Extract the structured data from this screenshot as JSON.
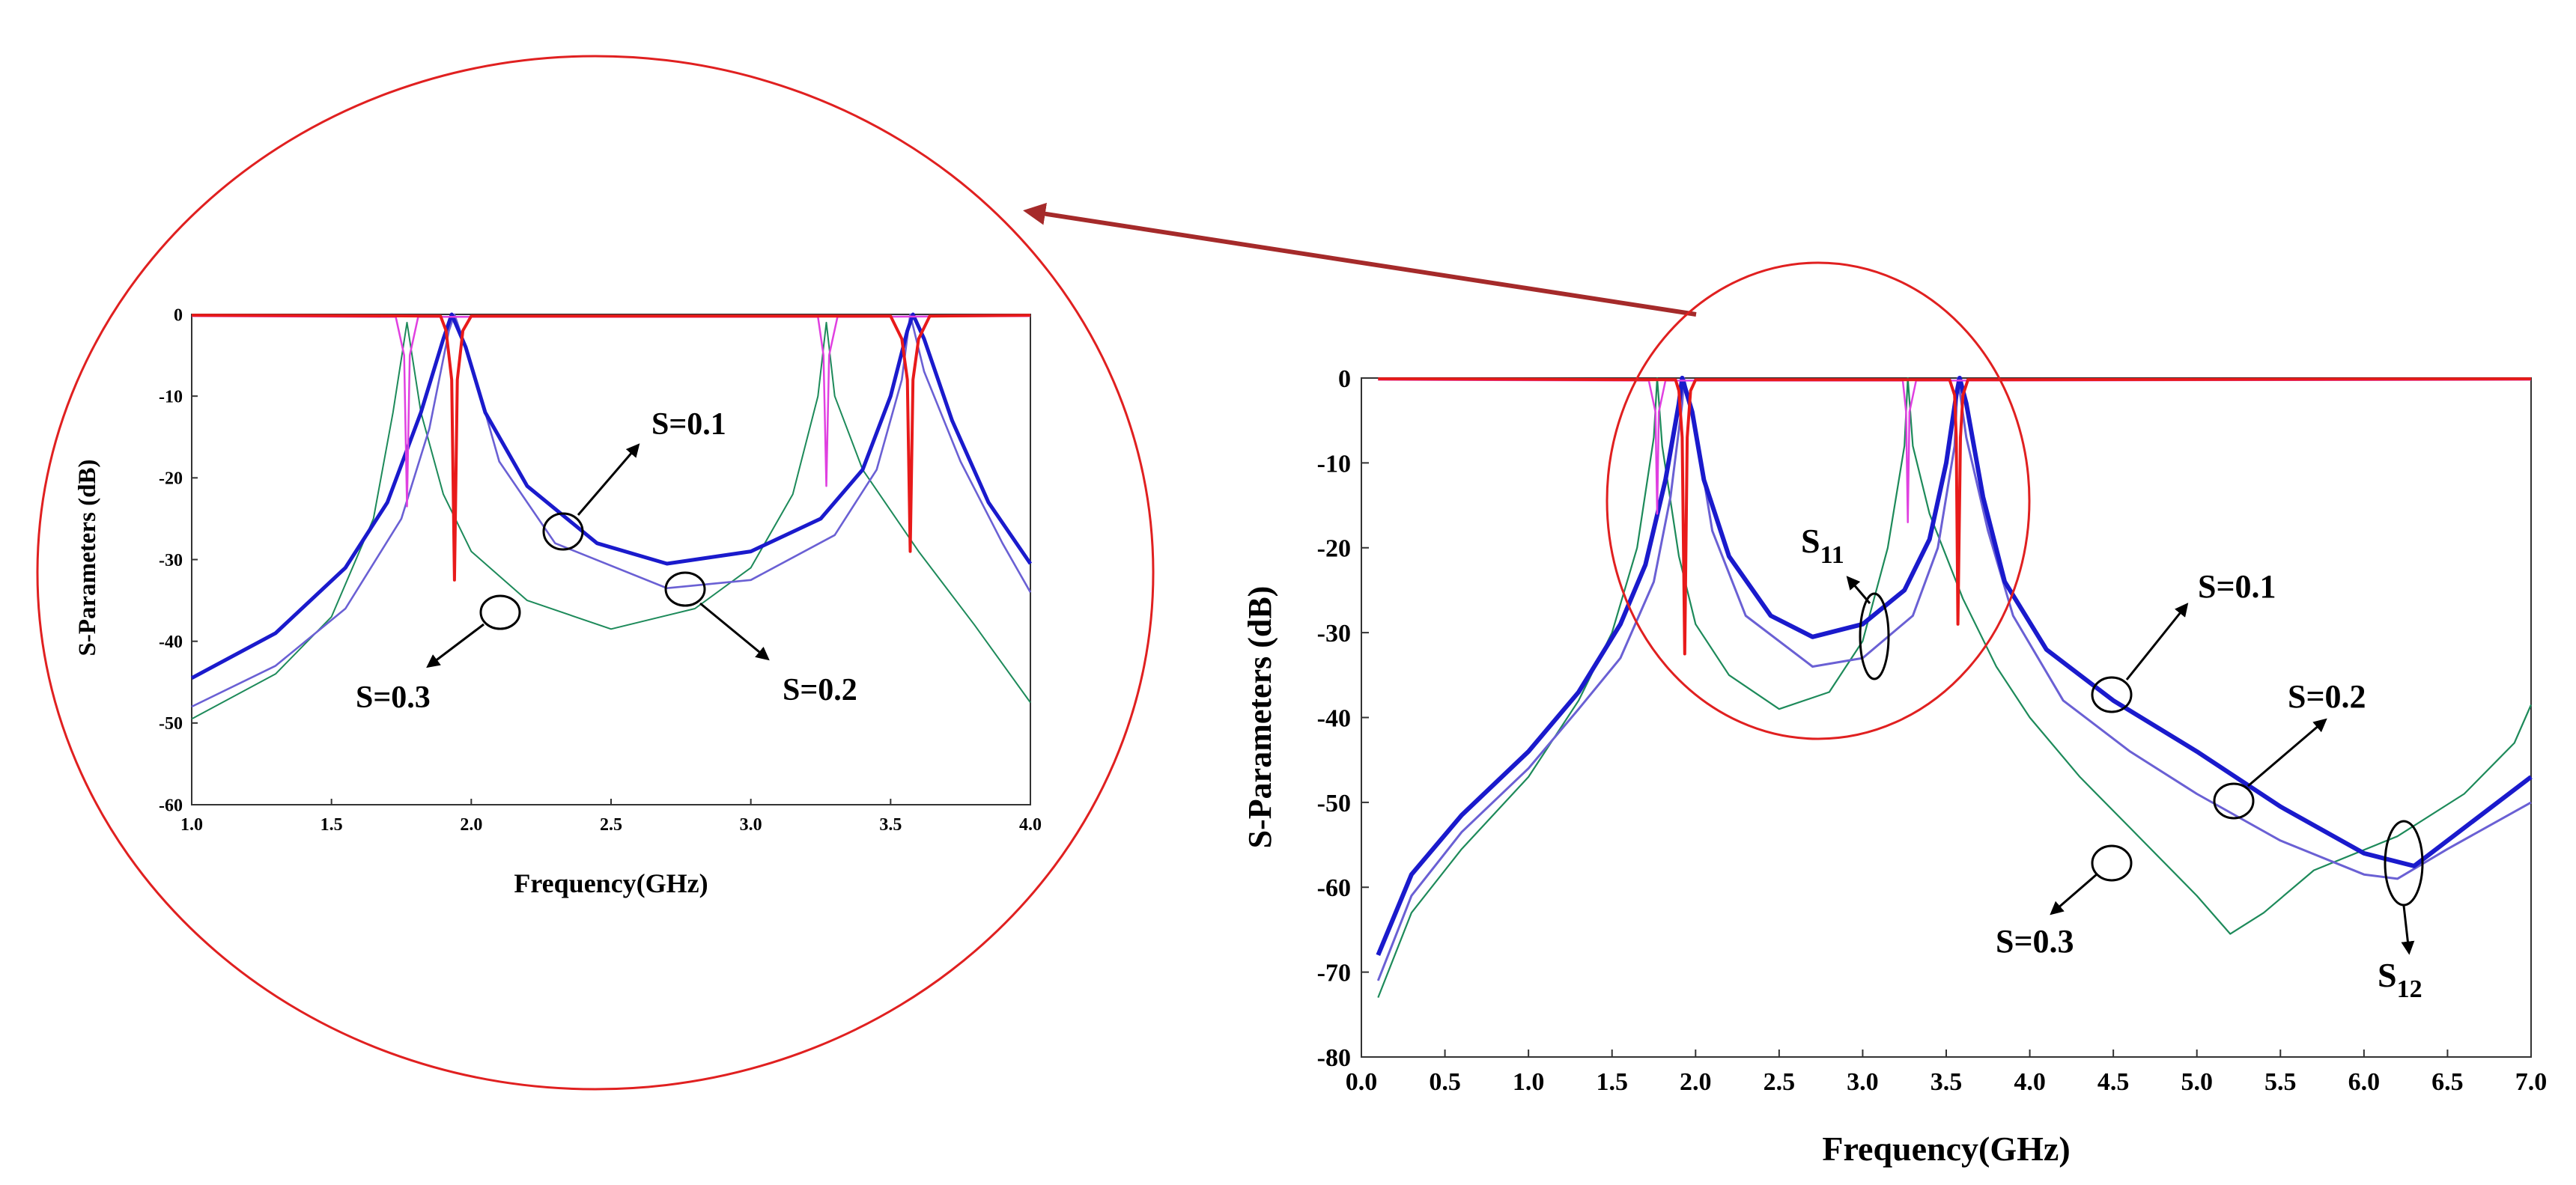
{
  "chart_data": [
    {
      "id": "main",
      "type": "line",
      "xlabel": "Frequency(GHz)",
      "ylabel": "S-Parameters (dB)",
      "xlim": [
        0.0,
        7.0
      ],
      "ylim": [
        -80,
        0
      ],
      "xticks": [
        "0.0",
        "0.5",
        "1.0",
        "1.5",
        "2.0",
        "2.5",
        "3.0",
        "3.5",
        "4.0",
        "4.5",
        "5.0",
        "5.5",
        "6.0",
        "6.5",
        "7.0"
      ],
      "yticks": [
        "0",
        "-10",
        "-20",
        "-30",
        "-40",
        "-50",
        "-60",
        "-70",
        "-80"
      ],
      "annotations": {
        "s01": "S=0.1",
        "s02": "S=0.2",
        "s03": "S=0.3",
        "s11_main": "S",
        "s11_sub": "11",
        "s12_main": "S",
        "s12_sub": "12"
      },
      "series": [
        {
          "name": "S12 (S=0.3)",
          "color": "#1d8a5a",
          "width": 2.2,
          "points": [
            [
              0.1,
              -73
            ],
            [
              0.3,
              -63
            ],
            [
              0.6,
              -55.5
            ],
            [
              1.0,
              -47
            ],
            [
              1.3,
              -38
            ],
            [
              1.5,
              -30
            ],
            [
              1.65,
              -20
            ],
            [
              1.75,
              -7
            ],
            [
              1.77,
              0
            ],
            [
              1.8,
              -8
            ],
            [
              1.9,
              -21
            ],
            [
              2.0,
              -29
            ],
            [
              2.2,
              -35
            ],
            [
              2.5,
              -39
            ],
            [
              2.8,
              -37
            ],
            [
              3.0,
              -31
            ],
            [
              3.15,
              -20
            ],
            [
              3.25,
              -8
            ],
            [
              3.27,
              0
            ],
            [
              3.3,
              -8
            ],
            [
              3.4,
              -16
            ],
            [
              3.6,
              -26
            ],
            [
              3.8,
              -34
            ],
            [
              4.0,
              -40
            ],
            [
              4.3,
              -47
            ],
            [
              4.6,
              -53
            ],
            [
              5.0,
              -61
            ],
            [
              5.2,
              -65.5
            ],
            [
              5.4,
              -63
            ],
            [
              5.7,
              -58
            ],
            [
              6.2,
              -54
            ],
            [
              6.6,
              -49
            ],
            [
              6.9,
              -43
            ],
            [
              7.0,
              -38.5
            ]
          ]
        },
        {
          "name": "S12 (S=0.2)",
          "color": "#6a60d4",
          "width": 3,
          "points": [
            [
              0.1,
              -71
            ],
            [
              0.3,
              -61
            ],
            [
              0.6,
              -53.5
            ],
            [
              1.0,
              -46
            ],
            [
              1.3,
              -39
            ],
            [
              1.55,
              -33
            ],
            [
              1.75,
              -24
            ],
            [
              1.85,
              -14
            ],
            [
              1.92,
              -3
            ],
            [
              1.93,
              0
            ],
            [
              2.0,
              -6
            ],
            [
              2.1,
              -18
            ],
            [
              2.3,
              -28
            ],
            [
              2.7,
              -34
            ],
            [
              3.0,
              -33
            ],
            [
              3.3,
              -28
            ],
            [
              3.45,
              -20
            ],
            [
              3.55,
              -8
            ],
            [
              3.57,
              0
            ],
            [
              3.62,
              -7
            ],
            [
              3.75,
              -18
            ],
            [
              3.9,
              -28
            ],
            [
              4.2,
              -38
            ],
            [
              4.6,
              -44
            ],
            [
              5.0,
              -49
            ],
            [
              5.5,
              -54.5
            ],
            [
              6.0,
              -58.5
            ],
            [
              6.2,
              -59
            ],
            [
              6.5,
              -55.5
            ],
            [
              7.0,
              -50
            ]
          ]
        },
        {
          "name": "S12 (S=0.1)",
          "color": "#1a1acc",
          "width": 6,
          "points": [
            [
              0.1,
              -68
            ],
            [
              0.3,
              -58.5
            ],
            [
              0.6,
              -51.5
            ],
            [
              1.0,
              -44
            ],
            [
              1.3,
              -37
            ],
            [
              1.55,
              -29
            ],
            [
              1.7,
              -22
            ],
            [
              1.82,
              -12
            ],
            [
              1.9,
              -3
            ],
            [
              1.92,
              0
            ],
            [
              1.98,
              -4
            ],
            [
              2.05,
              -12
            ],
            [
              2.2,
              -21
            ],
            [
              2.45,
              -28
            ],
            [
              2.7,
              -30.5
            ],
            [
              3.0,
              -29
            ],
            [
              3.25,
              -25
            ],
            [
              3.4,
              -19
            ],
            [
              3.5,
              -10
            ],
            [
              3.56,
              -2
            ],
            [
              3.58,
              0
            ],
            [
              3.62,
              -3
            ],
            [
              3.72,
              -14
            ],
            [
              3.85,
              -24
            ],
            [
              4.1,
              -32
            ],
            [
              4.5,
              -38
            ],
            [
              5.0,
              -44
            ],
            [
              5.5,
              -50.5
            ],
            [
              6.0,
              -56
            ],
            [
              6.3,
              -57.5
            ],
            [
              6.6,
              -53
            ],
            [
              7.0,
              -47
            ]
          ]
        },
        {
          "name": "S11 (S=0.3)",
          "color": "#e040e0",
          "width": 2.5,
          "points": [
            [
              0.1,
              -0.2
            ],
            [
              1.72,
              -0.3
            ],
            [
              1.76,
              -4
            ],
            [
              1.77,
              -16
            ],
            [
              1.78,
              -4
            ],
            [
              1.82,
              -0.3
            ],
            [
              3.24,
              -0.3
            ],
            [
              3.26,
              -4
            ],
            [
              3.27,
              -17
            ],
            [
              3.28,
              -4
            ],
            [
              3.32,
              -0.3
            ],
            [
              7.0,
              -0.2
            ]
          ]
        },
        {
          "name": "S11 (S=0.1)",
          "color": "#e81a1a",
          "width": 4,
          "points": [
            [
              0.1,
              -0.1
            ],
            [
              1.88,
              -0.2
            ],
            [
              1.9,
              -1.5
            ],
            [
              1.92,
              -7
            ],
            [
              1.935,
              -32.5
            ],
            [
              1.95,
              -7
            ],
            [
              1.97,
              -1.5
            ],
            [
              2.0,
              -0.2
            ],
            [
              3.52,
              -0.2
            ],
            [
              3.55,
              -2
            ],
            [
              3.56,
              -7
            ],
            [
              3.57,
              -29
            ],
            [
              3.585,
              -7
            ],
            [
              3.6,
              -2
            ],
            [
              3.63,
              -0.2
            ],
            [
              7.0,
              -0.1
            ]
          ]
        }
      ]
    },
    {
      "id": "inset",
      "type": "line",
      "xlabel": "Frequency(GHz)",
      "ylabel": "S-Parameters (dB)",
      "xlim": [
        1.0,
        4.0
      ],
      "ylim": [
        -60,
        0
      ],
      "xticks": [
        "1.0",
        "1.5",
        "2.0",
        "2.5",
        "3.0",
        "3.5",
        "4.0"
      ],
      "yticks": [
        "0",
        "-10",
        "-20",
        "-30",
        "-40",
        "-50",
        "-60"
      ],
      "annotations": {
        "s01": "S=0.1",
        "s02": "S=0.2",
        "s03": "S=0.3"
      },
      "series": [
        {
          "name": "S12 (S=0.3)",
          "color": "#1d8a5a",
          "width": 2,
          "points": [
            [
              1.0,
              -49.5
            ],
            [
              1.3,
              -44
            ],
            [
              1.5,
              -37
            ],
            [
              1.65,
              -25
            ],
            [
              1.72,
              -12
            ],
            [
              1.77,
              -1
            ],
            [
              1.82,
              -12
            ],
            [
              1.9,
              -22
            ],
            [
              2.0,
              -29
            ],
            [
              2.2,
              -35
            ],
            [
              2.5,
              -38.5
            ],
            [
              2.8,
              -36
            ],
            [
              3.0,
              -31
            ],
            [
              3.15,
              -22
            ],
            [
              3.24,
              -10
            ],
            [
              3.27,
              -1
            ],
            [
              3.3,
              -10
            ],
            [
              3.4,
              -19
            ],
            [
              3.6,
              -29
            ],
            [
              3.8,
              -38
            ],
            [
              4.0,
              -47.5
            ]
          ]
        },
        {
          "name": "S12 (S=0.2)",
          "color": "#6a60d4",
          "width": 2.6,
          "points": [
            [
              1.0,
              -48
            ],
            [
              1.3,
              -43
            ],
            [
              1.55,
              -36
            ],
            [
              1.75,
              -25
            ],
            [
              1.85,
              -14
            ],
            [
              1.92,
              -2
            ],
            [
              1.94,
              0
            ],
            [
              2.0,
              -6
            ],
            [
              2.1,
              -18
            ],
            [
              2.3,
              -28
            ],
            [
              2.7,
              -33.5
            ],
            [
              3.0,
              -32.5
            ],
            [
              3.3,
              -27
            ],
            [
              3.45,
              -19
            ],
            [
              3.54,
              -8
            ],
            [
              3.57,
              0
            ],
            [
              3.62,
              -7
            ],
            [
              3.75,
              -18
            ],
            [
              3.9,
              -28
            ],
            [
              4.0,
              -34
            ]
          ]
        },
        {
          "name": "S12 (S=0.1)",
          "color": "#1a1acc",
          "width": 5,
          "points": [
            [
              1.0,
              -44.5
            ],
            [
              1.3,
              -39
            ],
            [
              1.55,
              -31
            ],
            [
              1.7,
              -23
            ],
            [
              1.82,
              -12
            ],
            [
              1.9,
              -3
            ],
            [
              1.93,
              0
            ],
            [
              1.98,
              -4
            ],
            [
              2.05,
              -12
            ],
            [
              2.2,
              -21
            ],
            [
              2.45,
              -28
            ],
            [
              2.7,
              -30.5
            ],
            [
              3.0,
              -29
            ],
            [
              3.25,
              -25
            ],
            [
              3.4,
              -19
            ],
            [
              3.5,
              -10
            ],
            [
              3.56,
              -2
            ],
            [
              3.58,
              0
            ],
            [
              3.62,
              -3
            ],
            [
              3.72,
              -13
            ],
            [
              3.85,
              -23
            ],
            [
              4.0,
              -30.5
            ]
          ]
        },
        {
          "name": "S11 (S=0.3)",
          "color": "#e040e0",
          "width": 2.5,
          "points": [
            [
              1.0,
              -0.2
            ],
            [
              1.73,
              -0.3
            ],
            [
              1.76,
              -5
            ],
            [
              1.77,
              -23.5
            ],
            [
              1.78,
              -5
            ],
            [
              1.81,
              -0.3
            ],
            [
              3.24,
              -0.3
            ],
            [
              3.26,
              -5
            ],
            [
              3.27,
              -21
            ],
            [
              3.28,
              -5
            ],
            [
              3.31,
              -0.3
            ],
            [
              4.0,
              -0.2
            ]
          ]
        },
        {
          "name": "S11 (S=0.1)",
          "color": "#e81a1a",
          "width": 4,
          "points": [
            [
              1.0,
              -0.1
            ],
            [
              1.89,
              -0.2
            ],
            [
              1.91,
              -2
            ],
            [
              1.93,
              -8
            ],
            [
              1.94,
              -32.5
            ],
            [
              1.95,
              -8
            ],
            [
              1.97,
              -2
            ],
            [
              2.0,
              -0.2
            ],
            [
              3.5,
              -0.2
            ],
            [
              3.54,
              -3
            ],
            [
              3.56,
              -8
            ],
            [
              3.57,
              -29
            ],
            [
              3.58,
              -8
            ],
            [
              3.6,
              -3
            ],
            [
              3.64,
              -0.2
            ],
            [
              4.0,
              -0.1
            ]
          ]
        }
      ]
    }
  ]
}
